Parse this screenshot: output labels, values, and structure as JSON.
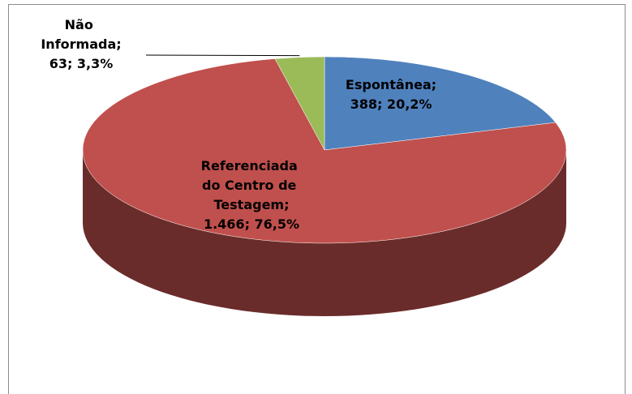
{
  "chart_data": {
    "type": "pie3d",
    "categories": [
      "Espontânea;",
      "Referenciada do Centro de Testagem;",
      "Não Informada;"
    ],
    "values": [
      388,
      1466,
      63
    ],
    "value_labels": [
      "388; 20,2%",
      "1.466; 76,5%",
      "63; 3,3%"
    ],
    "colors": [
      "#4f81bd",
      "#c0504d",
      "#9bbb59"
    ]
  }
}
